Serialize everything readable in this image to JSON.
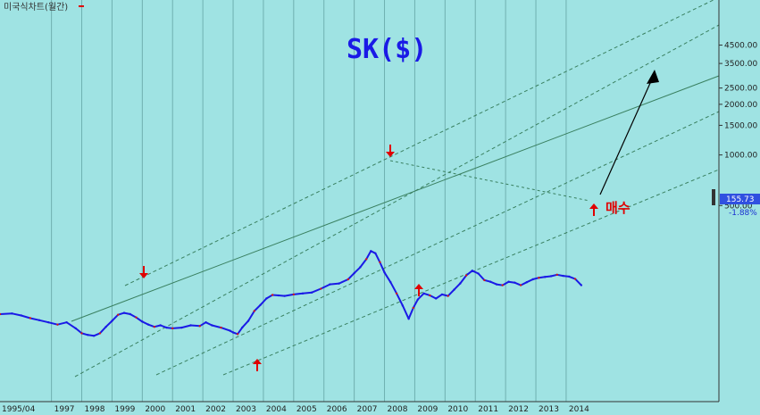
{
  "header": {
    "label": "미국식차트(월간)"
  },
  "chart_data": {
    "type": "line",
    "title": "SK($)",
    "y_scale": "log",
    "ylim": [
      80,
      5500
    ],
    "y_ticks": [
      "4500.00",
      "3500.00",
      "2500.00",
      "2000.00",
      "1500.00",
      "1000.00",
      "500.00"
    ],
    "x_labels": [
      "1995/04",
      "1997",
      "1998",
      "1999",
      "2000",
      "2001",
      "2002",
      "2003",
      "2004",
      "2005",
      "2006",
      "2007",
      "2008",
      "2009",
      "2010",
      "2011",
      "2012",
      "2013",
      "2014"
    ],
    "series": [
      {
        "x": [
          1995.3,
          1995.7,
          1996.0,
          1996.3,
          1996.6,
          1996.9,
          1997.2,
          1997.5,
          1997.8,
          1998.0,
          1998.2,
          1998.4,
          1998.6,
          1998.8,
          1999.0,
          1999.2,
          1999.4,
          1999.6,
          1999.8,
          2000.0,
          2000.2,
          2000.4,
          2000.6,
          2000.8,
          2001.0,
          2001.3,
          2001.6,
          2001.9,
          2002.1,
          2002.3,
          2002.6,
          2002.9,
          2003.0,
          2003.15,
          2003.3,
          2003.5,
          2003.7,
          2003.9,
          2004.1,
          2004.3,
          2004.5,
          2004.7,
          2005.0,
          2005.3,
          2005.6,
          2005.9,
          2006.2,
          2006.5,
          2006.8,
          2007.0,
          2007.2,
          2007.4,
          2007.55,
          2007.7,
          2007.85,
          2008.0,
          2008.2,
          2008.4,
          2008.6,
          2008.8,
          2008.95,
          2009.1,
          2009.3,
          2009.5,
          2009.7,
          2009.9,
          2010.1,
          2010.3,
          2010.5,
          2010.7,
          2010.9,
          2011.1,
          2011.3,
          2011.5,
          2011.7,
          2011.9,
          2012.1,
          2012.3,
          2012.5,
          2012.7,
          2012.9,
          2013.1,
          2013.3,
          2013.5,
          2013.7,
          2013.9,
          2014.1,
          2014.3,
          2014.5
        ],
        "values": [
          113,
          114,
          111,
          107,
          104,
          101,
          98,
          101,
          93,
          87,
          85,
          84,
          87,
          95,
          103,
          112,
          115,
          113,
          108,
          102,
          98,
          95,
          97,
          94,
          93,
          94,
          97,
          96,
          101,
          97,
          94,
          90,
          88,
          86,
          94,
          103,
          118,
          128,
          140,
          147,
          146,
          145,
          148,
          150,
          152,
          160,
          170,
          172,
          182,
          198,
          215,
          240,
          268,
          260,
          230,
          200,
          175,
          150,
          127,
          106,
          123,
          138,
          150,
          146,
          140,
          148,
          145,
          158,
          172,
          192,
          205,
          197,
          180,
          176,
          170,
          168,
          176,
          174,
          168,
          175,
          182,
          186,
          188,
          190,
          194,
          191,
          189,
          183,
          168
        ]
      }
    ],
    "last_price": "155.73",
    "change": "-1.88%",
    "annotations": [
      "매수"
    ]
  },
  "colors": {
    "background": "#9fe3e3",
    "price": "#1a1ae6",
    "arrows": "#e00000",
    "channel": "#3f8f5f"
  }
}
